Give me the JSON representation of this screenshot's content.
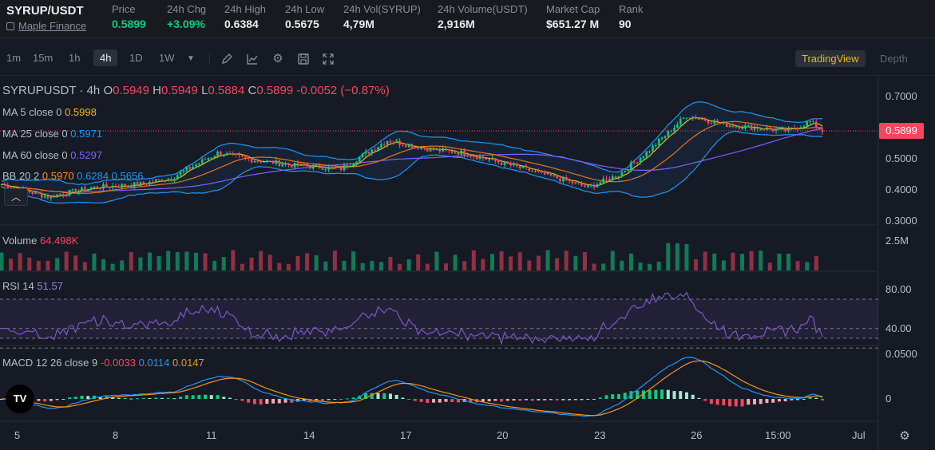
{
  "header": {
    "pair": "SYRUP/USDT",
    "project_link": "Maple Finance",
    "stats": [
      {
        "label": "Price",
        "value": "0.5899",
        "tone": "up"
      },
      {
        "label": "24h Chg",
        "value": "+3.09%",
        "tone": "up"
      },
      {
        "label": "24h High",
        "value": "0.6384",
        "tone": "plain"
      },
      {
        "label": "24h Low",
        "value": "0.5675",
        "tone": "plain"
      },
      {
        "label": "24h Vol(SYRUP)",
        "value": "4,79M",
        "tone": "plain"
      },
      {
        "label": "24h Volume(USDT)",
        "value": "2,916M",
        "tone": "plain"
      },
      {
        "label": "Market Cap",
        "value": "$651.27 M",
        "tone": "plain"
      },
      {
        "label": "Rank",
        "value": "90",
        "tone": "plain"
      }
    ]
  },
  "toolbar": {
    "timeframes": [
      "1m",
      "15m",
      "1h",
      "4h",
      "1D",
      "1W"
    ],
    "active_timeframe": "4h",
    "more_icon": "caret-down-icon",
    "tool_icons": [
      "pencil-icon",
      "indicator-icon",
      "gear-icon",
      "save-icon",
      "fullscreen-icon"
    ],
    "view_tradingview": "TradingView",
    "view_depth": "Depth"
  },
  "legend": {
    "symbol": "SYRUPUSDT · 4h",
    "o_label": "O",
    "o": "0.5949",
    "h_label": "H",
    "h": "0.5949",
    "l_label": "L",
    "l": "0.5884",
    "c_label": "C",
    "c": "0.5899",
    "change": "-0.0052 (−0.87%)",
    "ma5_label": "MA 5 close 0",
    "ma5": "0.5998",
    "ma25_label": "MA 25 close 0",
    "ma25": "0.5971",
    "ma60_label": "MA 60 close 0",
    "ma60": "0.5297",
    "bb_label": "BB 20 2",
    "bb_mid": "0.5970",
    "bb_up": "0.6284",
    "bb_lo": "0.5656",
    "volume_label": "Volume",
    "volume": "64.498K",
    "rsi_label": "RSI 14",
    "rsi": "51.57",
    "macd_label": "MACD 12 26 close 9",
    "macd_hist": "-0.0033",
    "macd": "0.0114",
    "macd_signal": "0.0147"
  },
  "axes": {
    "price_ticks": [
      "0.7000",
      "0.6000",
      "0.5000",
      "0.4000",
      "0.3000"
    ],
    "current_price": "0.5899",
    "volume_tick": "2.5M",
    "rsi_ticks": [
      "80.00",
      "40.00"
    ],
    "macd_ticks": [
      "0.0500",
      "0"
    ],
    "x_ticks": [
      "5",
      "8",
      "11",
      "14",
      "17",
      "20",
      "23",
      "26",
      "15:00",
      "Jul"
    ]
  },
  "colors": {
    "up": "#0ecb81",
    "down": "#f6465d",
    "ma5": "#f0b90b",
    "ma25": "#e8731a",
    "ma60": "#7b61ff",
    "bb": "#2196f3",
    "rsi": "#7e57c2",
    "macd": "#2196f3",
    "signal": "#f7931a"
  },
  "footer": {
    "tv_logo": "TV",
    "settings_icon": "gear-icon"
  }
}
